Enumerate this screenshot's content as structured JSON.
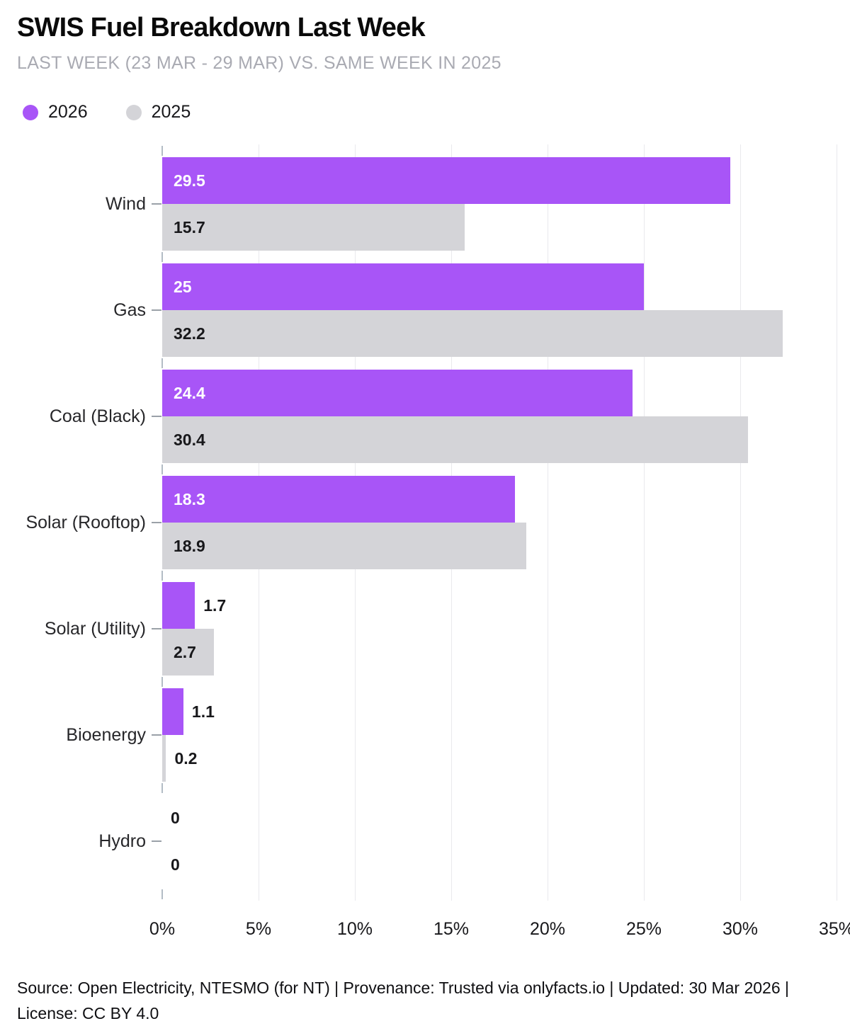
{
  "header": {
    "title": "SWIS Fuel Breakdown Last Week",
    "subtitle": "LAST WEEK (23 MAR - 29 MAR) VS. SAME WEEK IN 2025"
  },
  "legend": [
    {
      "label": "2026",
      "color": "#a855f7"
    },
    {
      "label": "2025",
      "color": "#d4d4d8"
    }
  ],
  "chart_data": {
    "type": "bar",
    "orientation": "horizontal",
    "title": "SWIS Fuel Breakdown Last Week",
    "subtitle": "LAST WEEK (23 MAR - 29 MAR) VS. SAME WEEK IN 2025",
    "categories": [
      "Wind",
      "Gas",
      "Coal (Black)",
      "Solar (Rooftop)",
      "Solar (Utility)",
      "Bioenergy",
      "Hydro"
    ],
    "series": [
      {
        "name": "2026",
        "color": "#a855f7",
        "inside_label_color": "#ffffff",
        "values": [
          29.5,
          25,
          24.4,
          18.3,
          1.7,
          1.1,
          0
        ]
      },
      {
        "name": "2025",
        "color": "#d4d4d8",
        "inside_label_color": "#18181b",
        "values": [
          15.7,
          32.2,
          30.4,
          18.9,
          2.7,
          0.2,
          0
        ]
      }
    ],
    "xlabel": "",
    "ylabel": "",
    "xlim": [
      0,
      35
    ],
    "x_ticks": [
      "0%",
      "5%",
      "10%",
      "15%",
      "20%",
      "25%",
      "30%",
      "35%"
    ],
    "grid": true,
    "legend_position": "top-left"
  },
  "footer": {
    "text": "Source: Open Electricity, NTESMO (for NT) | Provenance: Trusted via onlyfacts.io | Updated: 30 Mar 2026 | License: CC BY 4.0"
  },
  "colors": {
    "accent": "#a855f7",
    "muted": "#d4d4d8",
    "grid": "#e9e9ed",
    "tick": "#b3bcc5",
    "subtitle_text": "#a9aab2",
    "text": "#18181b"
  }
}
